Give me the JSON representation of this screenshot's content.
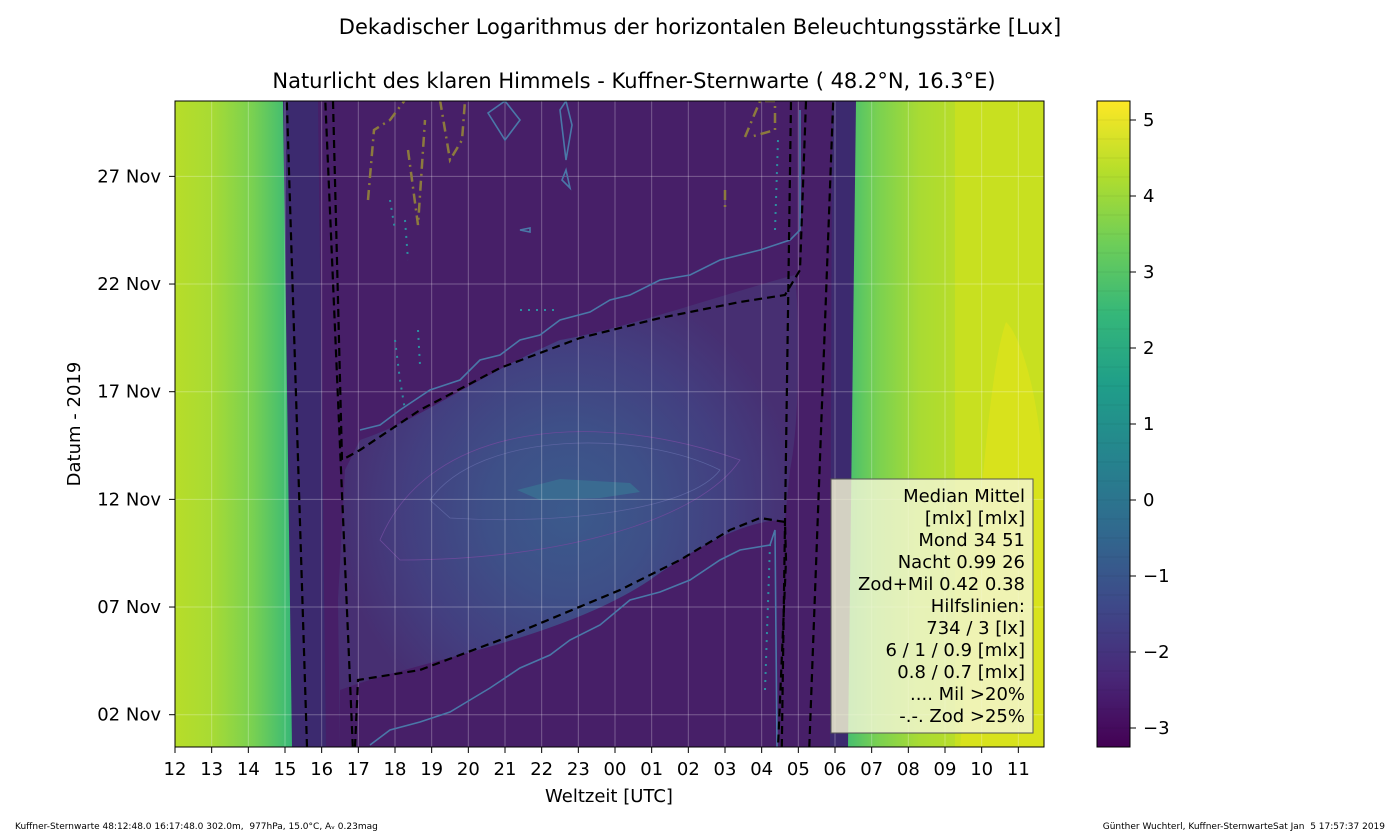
{
  "chart_data": {
    "type": "heatmap",
    "title": "Dekadischer Logarithmus der horizontalen Beleuchtungsstärke [Lux]",
    "subtitle": "Naturlicht des klaren Himmels - Kuffner-Sternwarte ( 48.2°N, 16.3°E)",
    "xlabel": "Weltzeit [UTC]",
    "ylabel": "Datum - 2019",
    "x_ticks": [
      "12",
      "13",
      "14",
      "15",
      "16",
      "17",
      "18",
      "19",
      "20",
      "21",
      "22",
      "23",
      "00",
      "01",
      "02",
      "03",
      "04",
      "05",
      "06",
      "07",
      "08",
      "09",
      "10",
      "11"
    ],
    "x_range_hours": [
      0,
      23.7
    ],
    "y_ticks": [
      "02 Nov",
      "07 Nov",
      "12 Nov",
      "17 Nov",
      "22 Nov",
      "27 Nov"
    ],
    "y_tick_days": [
      2,
      7,
      12,
      17,
      22,
      27
    ],
    "y_range_days": [
      0.5,
      30.5
    ],
    "z_range": [
      -3.25,
      5.25
    ],
    "colorbar": {
      "ticks": [
        5,
        4,
        3,
        2,
        1,
        0,
        -1,
        -2,
        -3
      ],
      "tick_labels": [
        "5",
        "4",
        "3",
        "2",
        "1",
        "0",
        "−1",
        "−2",
        "−3"
      ],
      "colormap": [
        "#440154",
        "#482878",
        "#3e4989",
        "#31688e",
        "#26828e",
        "#1f9e89",
        "#35b779",
        "#6ece58",
        "#b5de2b",
        "#fde725"
      ]
    },
    "sunset_line_hours": [
      [
        0.5,
        3.6
      ],
      [
        30.5,
        3.05
      ]
    ],
    "sunrise_line_hours": [
      [
        0.5,
        17.3
      ],
      [
        30.5,
        17.95
      ]
    ],
    "moon_bright_region": "Nov 2 - Nov 22",
    "legend_lines": [
      "Median Mittel",
      "[mlx]  [mlx]",
      "Mond   34  51",
      "Nacht 0.99  26",
      "Zod+Mil 0.42  0.38",
      "Hilfslinien:",
      "734 / 3  [lx]",
      "6 /  1 / 0.9 [mlx]",
      "0.8 / 0.7 [mlx]",
      ".... Mil >20%",
      "-.-. Zod >25%"
    ],
    "grid": true
  },
  "footer": {
    "left": "Kuffner-Sternwarte 48:12:48.0 16:17:48.0 302.0m,  977hPa, 15.0°C, Aᵥ 0.23mag",
    "right": "Günther Wuchterl, Kuffner-SternwarteSat Jan  5 17:57:37 2019"
  }
}
